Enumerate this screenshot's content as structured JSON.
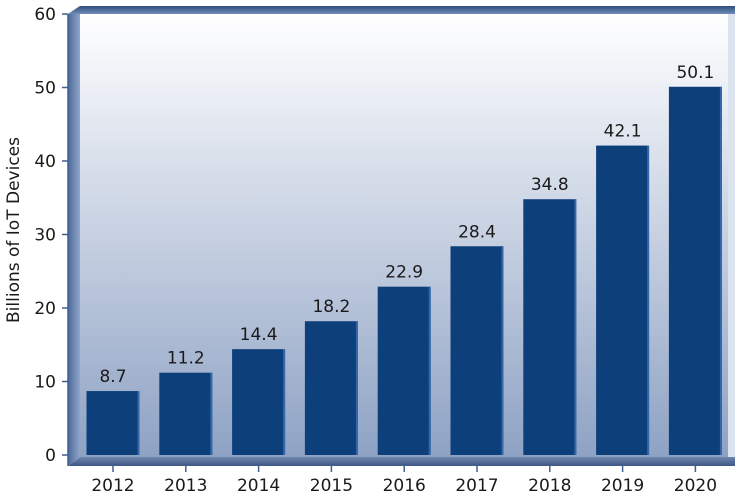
{
  "chart_data": {
    "type": "bar",
    "title": "",
    "xlabel": "",
    "ylabel": "Billions of IoT Devices",
    "categories": [
      "2012",
      "2013",
      "2014",
      "2015",
      "2016",
      "2017",
      "2018",
      "2019",
      "2020"
    ],
    "values": [
      8.7,
      11.2,
      14.4,
      18.2,
      22.9,
      28.4,
      34.8,
      42.1,
      50.1
    ],
    "value_labels": [
      "8.7",
      "11.2",
      "14.4",
      "18.2",
      "22.9",
      "28.4",
      "34.8",
      "42.1",
      "50.1"
    ],
    "ylim": [
      0,
      60
    ],
    "yticks": [
      "0",
      "10",
      "20",
      "30",
      "40",
      "50",
      "60"
    ],
    "grid": false,
    "legend": "none",
    "colors": {
      "bar": "#0d3f7a",
      "bar_right_highlight": "#3d72b6",
      "background_top": "#ffffff",
      "background_bottom": "#8ea2c4",
      "frame_left": "#5d7aa6",
      "frame_top": "#3f5f8f"
    }
  }
}
